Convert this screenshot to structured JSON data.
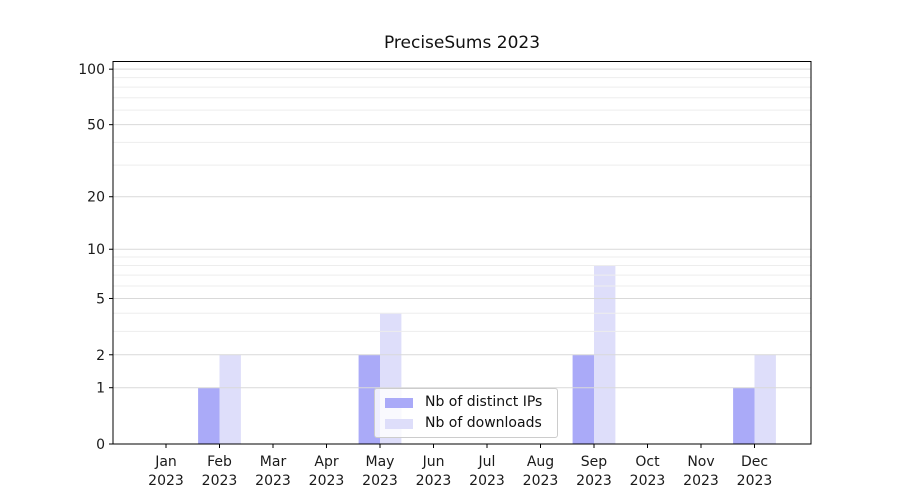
{
  "chart_data": {
    "type": "bar",
    "title": "PreciseSums 2023",
    "categories": [
      "Jan",
      "Feb",
      "Mar",
      "Apr",
      "May",
      "Jun",
      "Jul",
      "Aug",
      "Sep",
      "Oct",
      "Nov",
      "Dec"
    ],
    "x_sublabel": "2023",
    "series": [
      {
        "name": "Nb of distinct IPs",
        "color": "#aaaaf8",
        "values": [
          0,
          1,
          0,
          0,
          2,
          0,
          0,
          0,
          2,
          0,
          0,
          1
        ]
      },
      {
        "name": "Nb of downloads",
        "color": "#dedefa",
        "values": [
          0,
          2,
          0,
          0,
          4,
          0,
          0,
          0,
          8,
          0,
          0,
          2
        ]
      }
    ],
    "y_scale": "log10(1+v)",
    "y_ticks": [
      0,
      1,
      2,
      5,
      10,
      20,
      50,
      100
    ],
    "y_minor_ticks": [
      3,
      4,
      6,
      7,
      8,
      9,
      30,
      40,
      60,
      70,
      80,
      90
    ],
    "ylim": [
      0,
      110
    ],
    "grid": true,
    "legend_position": "lower center",
    "colors": {
      "major_grid": "#d9d9d9",
      "minor_grid": "#ededed",
      "spine": "#000000",
      "tick_text": "#1a1a1a"
    }
  }
}
